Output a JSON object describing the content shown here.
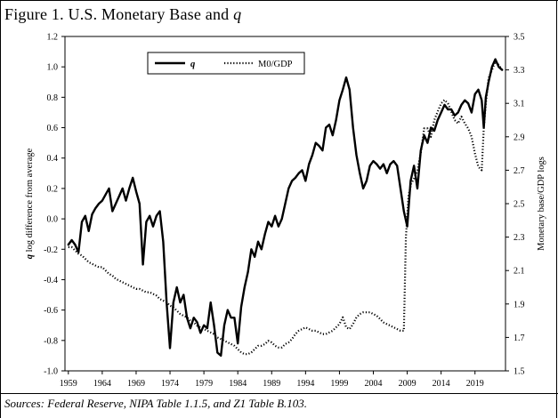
{
  "title": {
    "prefix": "Figure 1. U.S. Monetary Base and ",
    "q": "q"
  },
  "sources": "Sources: Federal Reserve, NIPA Table 1.1.5, and Z1 Table B.103.",
  "chart_data": {
    "type": "line",
    "title": "Figure 1. U.S. Monetary Base and q",
    "ylabel_left_q": "q",
    "ylabel_left_rest": " log difference from average",
    "ylabel_right": "Monetary base/GDP logs",
    "xlim": [
      1958.5,
      2023.5
    ],
    "ylim_left": [
      -1.0,
      1.2
    ],
    "ylim_right": [
      1.5,
      3.5
    ],
    "x_ticks": [
      1959,
      1964,
      1969,
      1974,
      1979,
      1984,
      1989,
      1994,
      1999,
      2004,
      2009,
      2014,
      2019
    ],
    "y_ticks_left": [
      "-1.0",
      "-0.8",
      "-0.6",
      "-0.4",
      "-0.2",
      "0.0",
      "0.2",
      "0.4",
      "0.6",
      "0.8",
      "1.0",
      "1.2"
    ],
    "y_ticks_right": [
      "1.5",
      "1.7",
      "1.9",
      "2.1",
      "2.3",
      "2.5",
      "2.7",
      "2.9",
      "3.1",
      "3.3",
      "3.5"
    ],
    "legend": [
      "q",
      "M0/GDP"
    ],
    "series": [
      {
        "name": "q",
        "axis": "left",
        "style": "solid",
        "x": [
          1959.0,
          1959.5,
          1960.0,
          1960.5,
          1961.0,
          1961.5,
          1962.0,
          1962.5,
          1963.0,
          1963.5,
          1964.0,
          1964.5,
          1965.0,
          1965.5,
          1966.0,
          1966.5,
          1967.0,
          1967.5,
          1968.0,
          1968.5,
          1969.0,
          1969.5,
          1970.0,
          1970.5,
          1971.0,
          1971.5,
          1972.0,
          1972.5,
          1973.0,
          1973.5,
          1974.0,
          1974.5,
          1975.0,
          1975.5,
          1976.0,
          1976.5,
          1977.0,
          1977.5,
          1978.0,
          1978.5,
          1979.0,
          1979.5,
          1980.0,
          1980.5,
          1981.0,
          1981.5,
          1982.0,
          1982.5,
          1983.0,
          1983.5,
          1984.0,
          1984.5,
          1985.0,
          1985.5,
          1986.0,
          1986.5,
          1987.0,
          1987.5,
          1988.0,
          1988.5,
          1989.0,
          1989.5,
          1990.0,
          1990.5,
          1991.0,
          1991.5,
          1992.0,
          1992.5,
          1993.0,
          1993.5,
          1994.0,
          1994.5,
          1995.0,
          1995.5,
          1996.0,
          1996.5,
          1997.0,
          1997.5,
          1998.0,
          1998.5,
          1999.0,
          1999.5,
          2000.0,
          2000.5,
          2001.0,
          2001.5,
          2002.0,
          2002.5,
          2003.0,
          2003.5,
          2004.0,
          2004.5,
          2005.0,
          2005.5,
          2006.0,
          2006.5,
          2007.0,
          2007.5,
          2008.0,
          2008.5,
          2009.0,
          2009.5,
          2010.0,
          2010.5,
          2011.0,
          2011.5,
          2012.0,
          2012.5,
          2013.0,
          2013.5,
          2014.0,
          2014.5,
          2015.0,
          2015.5,
          2016.0,
          2016.5,
          2017.0,
          2017.5,
          2018.0,
          2018.5,
          2019.0,
          2019.5,
          2020.0,
          2020.3,
          2020.6,
          2021.0,
          2021.5,
          2022.0,
          2022.5,
          2023.0
        ],
        "values": [
          -0.17,
          -0.14,
          -0.17,
          -0.22,
          -0.02,
          0.02,
          -0.08,
          0.03,
          0.07,
          0.1,
          0.12,
          0.16,
          0.2,
          0.05,
          0.1,
          0.15,
          0.2,
          0.12,
          0.2,
          0.27,
          0.18,
          0.1,
          -0.3,
          -0.02,
          0.02,
          -0.05,
          0.02,
          0.05,
          -0.15,
          -0.55,
          -0.85,
          -0.55,
          -0.45,
          -0.55,
          -0.5,
          -0.65,
          -0.72,
          -0.65,
          -0.68,
          -0.75,
          -0.7,
          -0.72,
          -0.55,
          -0.7,
          -0.88,
          -0.9,
          -0.7,
          -0.6,
          -0.65,
          -0.65,
          -0.82,
          -0.58,
          -0.45,
          -0.35,
          -0.2,
          -0.25,
          -0.15,
          -0.2,
          -0.1,
          -0.02,
          -0.05,
          0.02,
          -0.05,
          0.0,
          0.1,
          0.2,
          0.25,
          0.27,
          0.3,
          0.32,
          0.25,
          0.36,
          0.42,
          0.5,
          0.48,
          0.45,
          0.6,
          0.62,
          0.55,
          0.65,
          0.78,
          0.85,
          0.93,
          0.85,
          0.6,
          0.42,
          0.3,
          0.2,
          0.25,
          0.35,
          0.38,
          0.36,
          0.33,
          0.36,
          0.3,
          0.36,
          0.38,
          0.35,
          0.2,
          0.05,
          -0.05,
          0.25,
          0.35,
          0.2,
          0.45,
          0.55,
          0.5,
          0.6,
          0.58,
          0.65,
          0.7,
          0.75,
          0.72,
          0.72,
          0.68,
          0.7,
          0.75,
          0.78,
          0.76,
          0.7,
          0.82,
          0.85,
          0.78,
          0.6,
          0.8,
          0.9,
          1.0,
          1.05,
          1.0,
          0.98
        ]
      },
      {
        "name": "M0/GDP",
        "axis": "right",
        "style": "dotted",
        "x": [
          1959.0,
          1959.5,
          1960.0,
          1960.5,
          1961.0,
          1961.5,
          1962.0,
          1962.5,
          1963.0,
          1963.5,
          1964.0,
          1964.5,
          1965.0,
          1965.5,
          1966.0,
          1966.5,
          1967.0,
          1967.5,
          1968.0,
          1968.5,
          1969.0,
          1969.5,
          1970.0,
          1970.5,
          1971.0,
          1971.5,
          1972.0,
          1972.5,
          1973.0,
          1973.5,
          1974.0,
          1974.5,
          1975.0,
          1975.5,
          1976.0,
          1976.5,
          1977.0,
          1977.5,
          1978.0,
          1978.5,
          1979.0,
          1979.5,
          1980.0,
          1980.5,
          1981.0,
          1981.5,
          1982.0,
          1982.5,
          1983.0,
          1983.5,
          1984.0,
          1984.5,
          1985.0,
          1985.5,
          1986.0,
          1986.5,
          1987.0,
          1987.5,
          1988.0,
          1988.5,
          1989.0,
          1989.5,
          1990.0,
          1990.5,
          1991.0,
          1991.5,
          1992.0,
          1992.5,
          1993.0,
          1993.5,
          1994.0,
          1994.5,
          1995.0,
          1995.5,
          1996.0,
          1996.5,
          1997.0,
          1997.5,
          1998.0,
          1998.5,
          1999.0,
          1999.5,
          2000.0,
          2000.5,
          2001.0,
          2001.5,
          2002.0,
          2002.5,
          2003.0,
          2003.5,
          2004.0,
          2004.5,
          2005.0,
          2005.5,
          2006.0,
          2006.5,
          2007.0,
          2007.5,
          2008.0,
          2008.5,
          2008.8,
          2009.2,
          2009.6,
          2010.0,
          2010.5,
          2011.0,
          2011.5,
          2012.0,
          2012.5,
          2013.0,
          2013.5,
          2014.0,
          2014.5,
          2015.0,
          2015.5,
          2016.0,
          2016.5,
          2017.0,
          2017.5,
          2018.0,
          2018.5,
          2019.0,
          2019.5,
          2020.0,
          2020.3,
          2020.6,
          2021.0,
          2021.5,
          2022.0,
          2022.5,
          2023.0
        ],
        "values": [
          2.24,
          2.24,
          2.22,
          2.2,
          2.19,
          2.17,
          2.15,
          2.14,
          2.13,
          2.12,
          2.12,
          2.1,
          2.08,
          2.07,
          2.05,
          2.04,
          2.03,
          2.02,
          2.01,
          2.0,
          1.99,
          1.99,
          1.98,
          1.97,
          1.97,
          1.96,
          1.95,
          1.93,
          1.92,
          1.91,
          1.89,
          1.88,
          1.86,
          1.84,
          1.83,
          1.82,
          1.8,
          1.79,
          1.77,
          1.76,
          1.75,
          1.74,
          1.73,
          1.72,
          1.7,
          1.69,
          1.68,
          1.67,
          1.66,
          1.65,
          1.63,
          1.61,
          1.6,
          1.6,
          1.61,
          1.63,
          1.65,
          1.65,
          1.66,
          1.68,
          1.67,
          1.65,
          1.64,
          1.64,
          1.66,
          1.67,
          1.69,
          1.72,
          1.74,
          1.75,
          1.76,
          1.75,
          1.74,
          1.74,
          1.73,
          1.72,
          1.72,
          1.73,
          1.74,
          1.76,
          1.78,
          1.82,
          1.76,
          1.75,
          1.78,
          1.82,
          1.84,
          1.85,
          1.85,
          1.85,
          1.84,
          1.83,
          1.81,
          1.79,
          1.78,
          1.77,
          1.76,
          1.75,
          1.74,
          1.74,
          2.3,
          2.55,
          2.62,
          2.65,
          2.7,
          2.8,
          2.95,
          2.95,
          2.9,
          3.0,
          3.05,
          3.1,
          3.12,
          3.1,
          3.05,
          3.0,
          2.98,
          3.02,
          2.98,
          2.95,
          2.9,
          2.8,
          2.72,
          2.7,
          2.95,
          3.1,
          3.25,
          3.3,
          3.35,
          3.33,
          3.3
        ]
      }
    ]
  }
}
